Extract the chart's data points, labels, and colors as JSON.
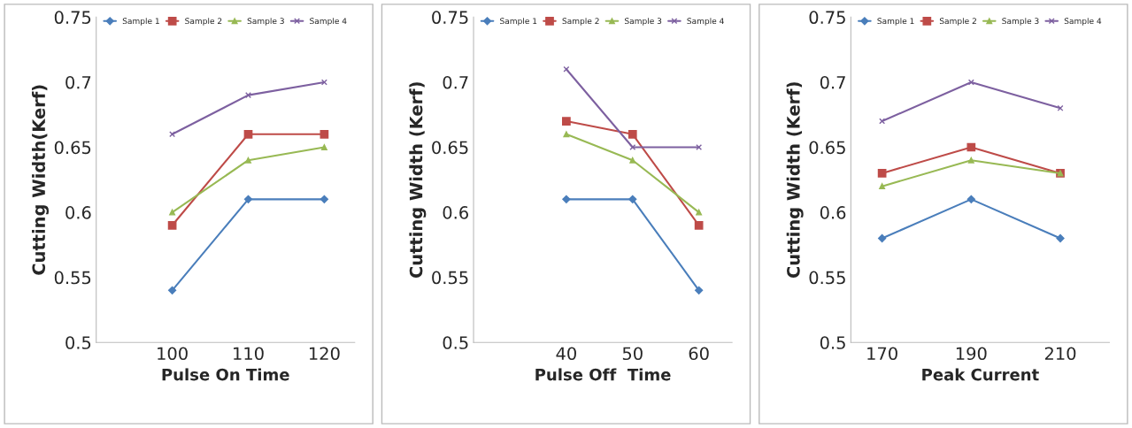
{
  "chart_data": [
    {
      "type": "line",
      "xlabel": "Pulse On Time",
      "ylabel": "Cutting Width(Kerf)",
      "x": [
        100,
        110,
        120
      ],
      "xlim": [
        90,
        124
      ],
      "xticks": [
        100,
        110,
        120
      ],
      "ylim": [
        0.5,
        0.75
      ],
      "yticks": [
        0.5,
        0.55,
        0.6,
        0.65,
        0.7,
        0.75
      ],
      "grid": false,
      "legend": "top",
      "series": [
        {
          "name": "Sample 1",
          "color": "#4a7ebb",
          "marker": "diamond",
          "values": [
            0.54,
            0.61,
            0.61
          ]
        },
        {
          "name": "Sample 2",
          "color": "#be4b48",
          "marker": "square",
          "values": [
            0.59,
            0.66,
            0.66
          ]
        },
        {
          "name": "Sample 3",
          "color": "#98b954",
          "marker": "triangle",
          "values": [
            0.6,
            0.64,
            0.65
          ]
        },
        {
          "name": "Sample 4",
          "color": "#7d60a0",
          "marker": "cross",
          "values": [
            0.66,
            0.69,
            0.7
          ]
        }
      ]
    },
    {
      "type": "line",
      "xlabel": "Pulse Off  Time",
      "ylabel": "Cutting Width (Kerf)",
      "x": [
        40,
        50,
        60
      ],
      "xlim": [
        26,
        65
      ],
      "xticks": [
        40,
        50,
        60
      ],
      "ylim": [
        0.5,
        0.75
      ],
      "yticks": [
        0.5,
        0.55,
        0.6,
        0.65,
        0.7,
        0.75
      ],
      "grid": false,
      "legend": "top",
      "series": [
        {
          "name": "Sample 1",
          "color": "#4a7ebb",
          "marker": "diamond",
          "values": [
            0.61,
            0.61,
            0.54
          ]
        },
        {
          "name": "Sample 2",
          "color": "#be4b48",
          "marker": "square",
          "values": [
            0.67,
            0.66,
            0.59
          ]
        },
        {
          "name": "Sample 3",
          "color": "#98b954",
          "marker": "triangle",
          "values": [
            0.66,
            0.64,
            0.6
          ]
        },
        {
          "name": "Sample 4",
          "color": "#7d60a0",
          "marker": "cross",
          "values": [
            0.71,
            0.65,
            0.65
          ]
        }
      ]
    },
    {
      "type": "line",
      "xlabel": "Peak Current",
      "ylabel": "Cutting Width (Kerf)",
      "x": [
        170,
        190,
        210
      ],
      "xlim": [
        163,
        221
      ],
      "xticks": [
        170,
        190,
        210
      ],
      "ylim": [
        0.5,
        0.75
      ],
      "yticks": [
        0.5,
        0.55,
        0.6,
        0.65,
        0.7,
        0.75
      ],
      "grid": false,
      "legend": "top",
      "series": [
        {
          "name": "Sample 1",
          "color": "#4a7ebb",
          "marker": "diamond",
          "values": [
            0.58,
            0.61,
            0.58
          ]
        },
        {
          "name": "Sample 2",
          "color": "#be4b48",
          "marker": "square",
          "values": [
            0.63,
            0.65,
            0.63
          ]
        },
        {
          "name": "Sample 3",
          "color": "#98b954",
          "marker": "triangle",
          "values": [
            0.62,
            0.64,
            0.63
          ]
        },
        {
          "name": "Sample 4",
          "color": "#7d60a0",
          "marker": "cross",
          "values": [
            0.67,
            0.7,
            0.68
          ]
        }
      ]
    }
  ]
}
